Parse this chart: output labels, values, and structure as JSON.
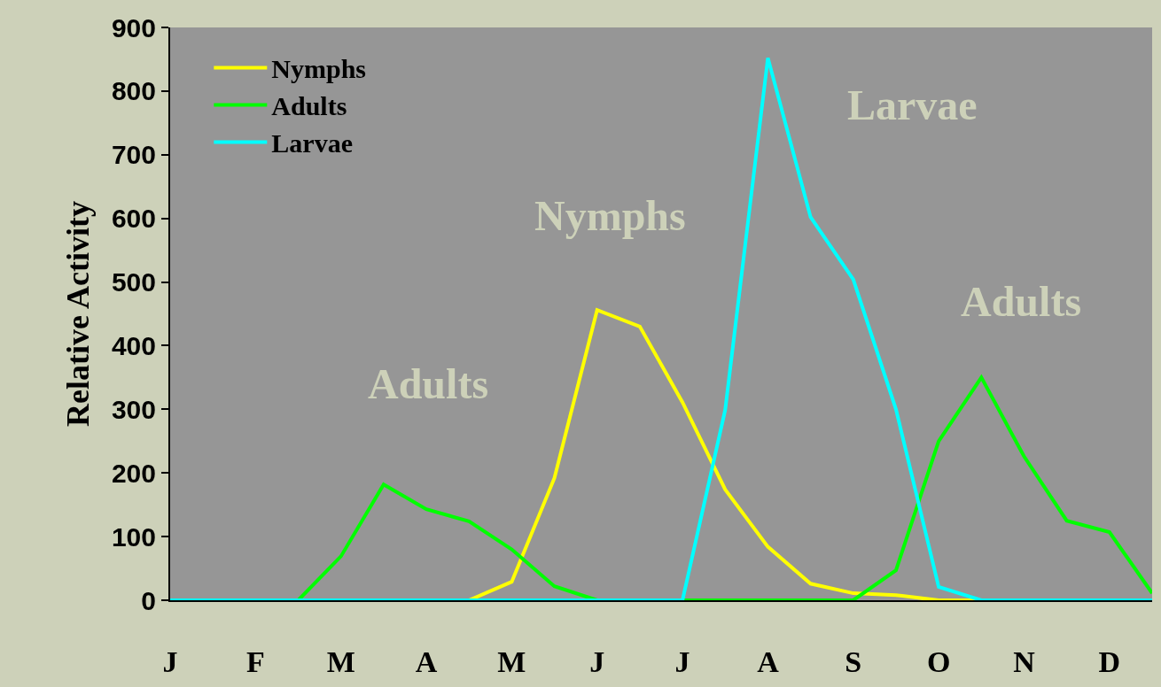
{
  "chart_data": {
    "type": "line",
    "ylabel": "Relative Activity",
    "categories": [
      "J",
      null,
      "F",
      null,
      "M",
      null,
      "A",
      null,
      "M",
      null,
      "J",
      null,
      "J",
      null,
      "A",
      null,
      "S",
      null,
      "O",
      null,
      "N",
      null,
      "D",
      null
    ],
    "ylim": [
      0,
      900
    ],
    "yticks": [
      0,
      100,
      200,
      300,
      400,
      500,
      600,
      700,
      800,
      900
    ],
    "grid": false,
    "legend": "top left",
    "series": [
      {
        "name": "Nymphs",
        "color": "#ffff00",
        "values": [
          null,
          null,
          null,
          null,
          null,
          null,
          0,
          0,
          29,
          192,
          456,
          430,
          311,
          174,
          84,
          26,
          11,
          8,
          0,
          0,
          0,
          null,
          null,
          null
        ]
      },
      {
        "name": "Adults",
        "color": "#00ff00",
        "values": [
          null,
          null,
          0,
          0,
          69,
          182,
          143,
          124,
          80,
          22,
          0,
          0,
          0,
          0,
          0,
          0,
          0,
          47,
          250,
          350,
          226,
          125,
          107,
          11
        ]
      },
      {
        "name": "Larvae",
        "color": "#00ffff",
        "values": [
          0,
          0,
          0,
          0,
          0,
          0,
          0,
          0,
          0,
          0,
          0,
          0,
          0,
          299,
          852,
          602,
          504,
          300,
          21,
          0,
          0,
          0,
          0,
          0
        ]
      }
    ],
    "annotations": [
      "Larvae",
      "Nymphs",
      "Adults",
      "Adults"
    ]
  }
}
